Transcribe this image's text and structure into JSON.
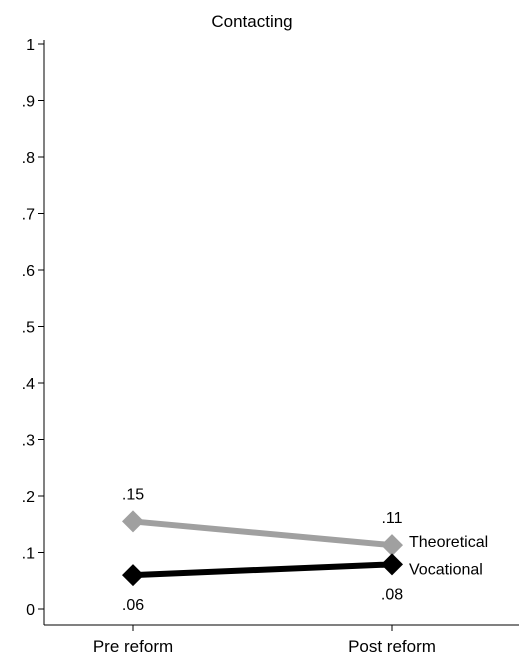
{
  "chart_data": {
    "type": "line",
    "title": "Contacting",
    "categories": [
      "Pre reform",
      "Post reform"
    ],
    "ylim": [
      0,
      1
    ],
    "yticks": [
      0,
      0.1,
      0.2,
      0.3,
      0.4,
      0.5,
      0.6,
      0.7,
      0.8,
      0.9,
      1
    ],
    "ytick_labels": [
      "0",
      ".1",
      ".2",
      ".3",
      ".4",
      ".5",
      ".6",
      ".7",
      ".8",
      ".9",
      "1"
    ],
    "grid": false,
    "series": [
      {
        "name": "Theoretical",
        "values": [
          0.155,
          0.113
        ],
        "value_labels": [
          ".15",
          ".11"
        ],
        "label_position": "above",
        "color": "#a0a0a0",
        "marker": "diamond"
      },
      {
        "name": "Vocational",
        "values": [
          0.06,
          0.079
        ],
        "value_labels": [
          ".06",
          ".08"
        ],
        "label_position": "below",
        "color": "#000000",
        "marker": "diamond"
      }
    ]
  }
}
